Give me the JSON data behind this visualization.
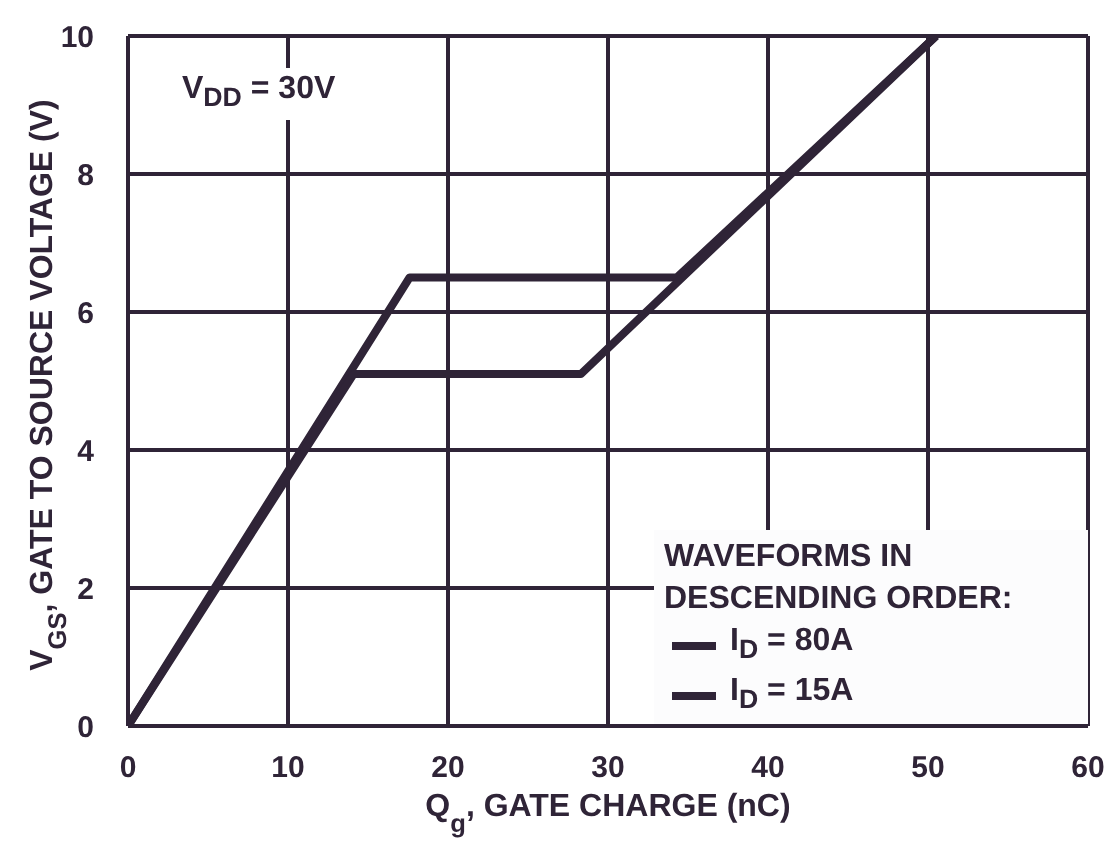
{
  "chart_data": {
    "type": "line",
    "xlabel": "Q$_{g}$, GATE CHARGE (nC)",
    "ylabel": "V$_{GS}$, GATE TO SOURCE VOLTAGE (V)",
    "legend_title": "WAVEFORMS IN DESCENDING ORDER:",
    "annotations": [
      "V$_{DD}$ = 30V"
    ],
    "series": [
      {
        "name": "I$_{D}$ = 80A",
        "color": "#2f2437",
        "x": [
          0,
          17.6,
          34.3,
          50.5
        ],
        "values": [
          0,
          6.5,
          6.5,
          10
        ]
      },
      {
        "name": "I$_{D}$ = 15A",
        "color": "#2f2437",
        "x": [
          0,
          14.1,
          28.3,
          50.5
        ],
        "values": [
          0,
          5.1,
          5.1,
          10
        ]
      }
    ],
    "xlim": [
      0,
      60
    ],
    "xticks": [
      0,
      10,
      20,
      30,
      40,
      50,
      60
    ],
    "ylim": [
      0,
      10
    ],
    "yticks": [
      0,
      2,
      4,
      6,
      8,
      10
    ],
    "grid": true,
    "legend": "bottom right",
    "marker": "none",
    "line_style": "solid"
  }
}
